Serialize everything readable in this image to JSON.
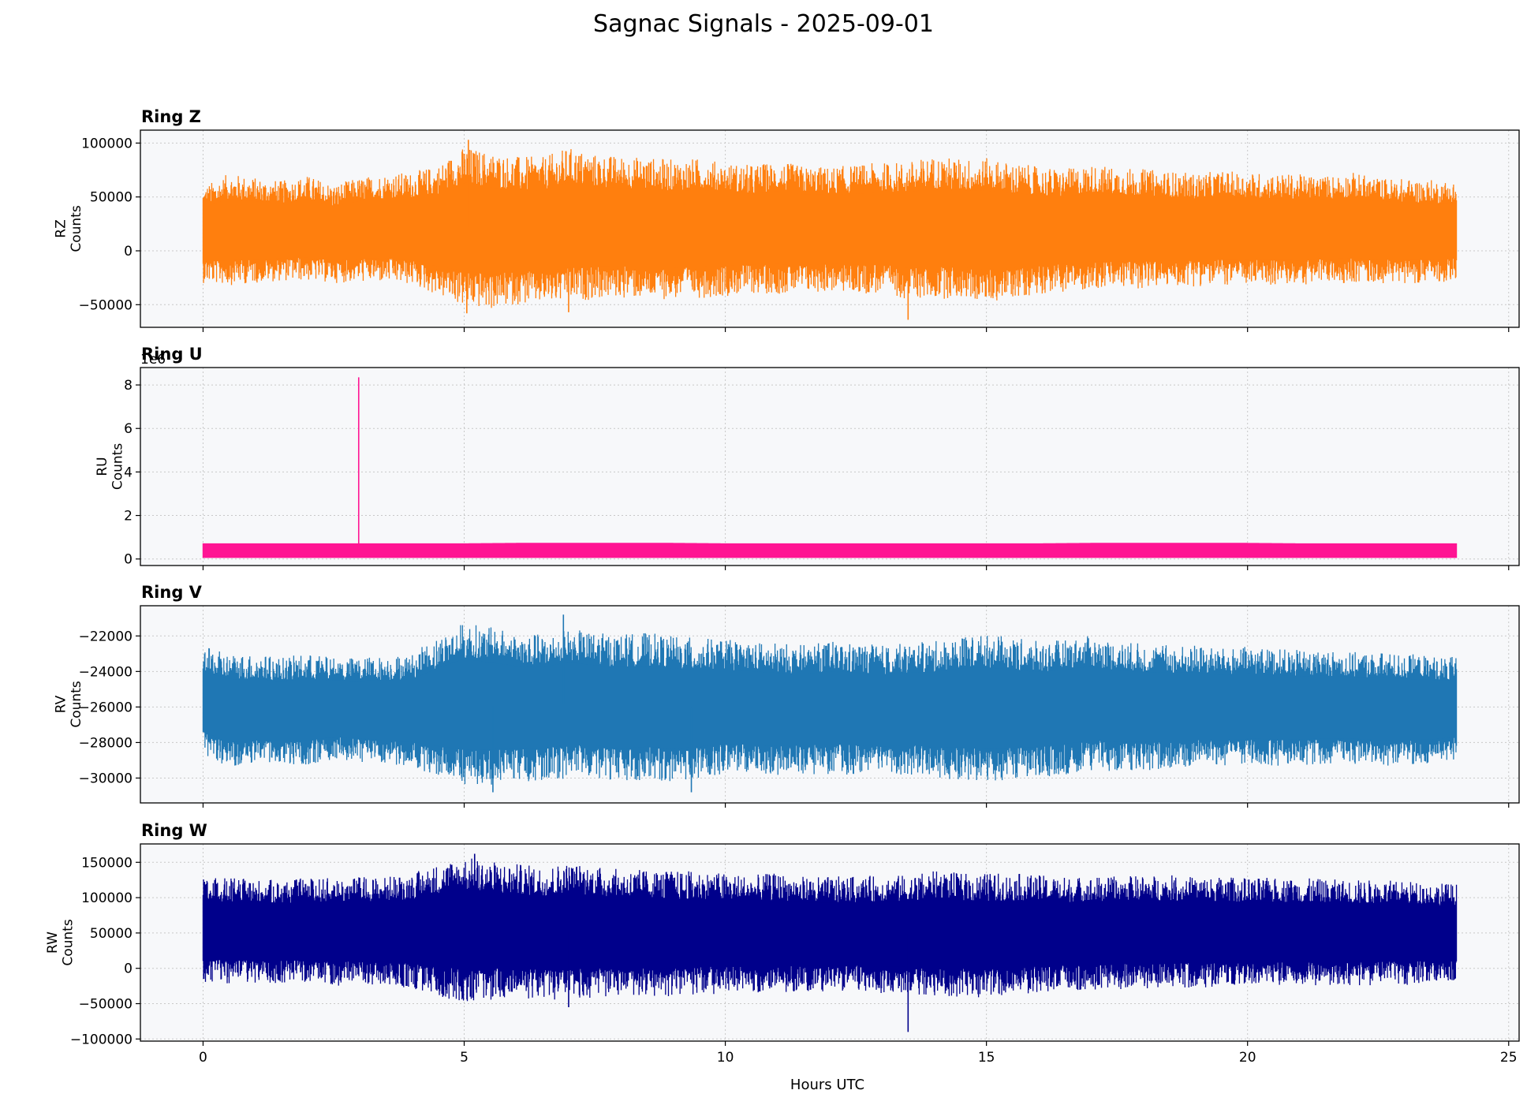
{
  "figure": {
    "title": "Sagnac Signals - 2025-09-01",
    "xlabel": "Hours UTC"
  },
  "chart_data": [
    {
      "type": "line",
      "panel_title": "Ring Z",
      "ylabel_lines": [
        "RZ",
        "Counts"
      ],
      "color": "#ff7f0e",
      "xlim": [
        -1.2,
        25.2
      ],
      "ylim": [
        -71000,
        112000
      ],
      "x_ticks": [
        0,
        5,
        10,
        15,
        20,
        25
      ],
      "y_ticks": [
        100000,
        50000,
        0,
        -50000
      ],
      "y_tick_labels": [
        "100000",
        "50000",
        "0",
        "−50000"
      ],
      "offset_label": "",
      "grid": true,
      "x": [
        0,
        0.5,
        1,
        1.5,
        2,
        2.5,
        3,
        3.5,
        4,
        4.5,
        5,
        5.5,
        6,
        6.5,
        7,
        7.5,
        8,
        8.5,
        9,
        9.5,
        10,
        10.5,
        11,
        11.5,
        12,
        12.5,
        13,
        13.5,
        14,
        14.5,
        15,
        15.5,
        16,
        16.5,
        17,
        17.5,
        18,
        18.5,
        19,
        19.5,
        20,
        20.5,
        21,
        21.5,
        22,
        22.5,
        23,
        23.5,
        24
      ],
      "upper": [
        60000,
        72000,
        68000,
        65000,
        70000,
        62000,
        68000,
        72000,
        73000,
        80000,
        97000,
        92000,
        88000,
        87000,
        96000,
        90000,
        88000,
        87000,
        85000,
        86000,
        82000,
        80000,
        83000,
        79000,
        78000,
        80000,
        82000,
        83000,
        88000,
        86000,
        86000,
        82000,
        78000,
        76000,
        80000,
        78000,
        76000,
        74000,
        72000,
        74000,
        73000,
        72000,
        71000,
        70000,
        73000,
        68000,
        67000,
        66000,
        65000
      ],
      "lower": [
        -30000,
        -32000,
        -30000,
        -28000,
        -28000,
        -30000,
        -29000,
        -30000,
        -32000,
        -42000,
        -52000,
        -55000,
        -50000,
        -50000,
        -48000,
        -45000,
        -44000,
        -45000,
        -45000,
        -44000,
        -42000,
        -40000,
        -40000,
        -40000,
        -38000,
        -40000,
        -40000,
        -45000,
        -45000,
        -44000,
        -48000,
        -44000,
        -40000,
        -38000,
        -36000,
        -35000,
        -35000,
        -33000,
        -33000,
        -32000,
        -32000,
        -32000,
        -32000,
        -30000,
        -30000,
        -30000,
        -30000,
        -30000,
        -28000
      ],
      "extremes": [
        {
          "x": 5.08,
          "y": 103000
        },
        {
          "x": 13.5,
          "y": -64000
        },
        {
          "x": 5.05,
          "y": -58000
        },
        {
          "x": 7.0,
          "y": -57000
        }
      ]
    },
    {
      "type": "line",
      "panel_title": "Ring U",
      "ylabel_lines": [
        "RU",
        "Counts"
      ],
      "color": "#ff1493",
      "xlim": [
        -1.2,
        25.2
      ],
      "ylim": [
        -0.3,
        8.8
      ],
      "x_ticks": [
        0,
        5,
        10,
        15,
        20,
        25
      ],
      "y_ticks": [
        8,
        6,
        4,
        2,
        0
      ],
      "y_tick_labels": [
        "8",
        "6",
        "4",
        "2",
        "0"
      ],
      "offset_label": "1e6",
      "grid": true,
      "x": [
        0,
        1,
        2,
        3,
        4,
        5,
        6,
        7,
        8,
        9,
        10,
        11,
        12,
        13,
        14,
        15,
        16,
        17,
        18,
        19,
        20,
        21,
        22,
        23,
        24
      ],
      "upper": [
        0.72,
        0.72,
        0.72,
        0.72,
        0.72,
        0.72,
        0.74,
        0.74,
        0.74,
        0.74,
        0.72,
        0.72,
        0.72,
        0.72,
        0.72,
        0.72,
        0.72,
        0.74,
        0.74,
        0.74,
        0.74,
        0.72,
        0.72,
        0.72,
        0.72
      ],
      "lower": [
        0.05,
        0.05,
        0.05,
        0.05,
        0.05,
        0.05,
        0.05,
        0.05,
        0.05,
        0.05,
        0.05,
        0.05,
        0.05,
        0.05,
        0.05,
        0.05,
        0.05,
        0.05,
        0.05,
        0.05,
        0.05,
        0.05,
        0.05,
        0.05,
        0.05
      ],
      "extremes": [
        {
          "x": 2.98,
          "y": 8.35
        }
      ]
    },
    {
      "type": "line",
      "panel_title": "Ring V",
      "ylabel_lines": [
        "RV",
        "Counts"
      ],
      "color": "#1f77b4",
      "xlim": [
        -1.2,
        25.2
      ],
      "ylim": [
        -31400,
        -20300
      ],
      "x_ticks": [
        0,
        5,
        10,
        15,
        20,
        25
      ],
      "y_ticks": [
        -22000,
        -24000,
        -26000,
        -28000,
        -30000
      ],
      "y_tick_labels": [
        "−22000",
        "−24000",
        "−26000",
        "−28000",
        "−30000"
      ],
      "offset_label": "",
      "grid": true,
      "x": [
        0,
        0.5,
        1,
        1.5,
        2,
        2.5,
        3,
        3.5,
        4,
        4.5,
        5,
        5.5,
        6,
        6.5,
        7,
        7.5,
        8,
        8.5,
        9,
        9.5,
        10,
        10.5,
        11,
        11.5,
        12,
        12.5,
        13,
        13.5,
        14,
        14.5,
        15,
        15.5,
        16,
        16.5,
        17,
        17.5,
        18,
        18.5,
        19,
        19.5,
        20,
        20.5,
        21,
        21.5,
        22,
        22.5,
        23,
        23.5,
        24
      ],
      "upper": [
        -22600,
        -23000,
        -23000,
        -23200,
        -23000,
        -23200,
        -23200,
        -23100,
        -23000,
        -22000,
        -21200,
        -21500,
        -21800,
        -21900,
        -21600,
        -21800,
        -21900,
        -21800,
        -22000,
        -22100,
        -22200,
        -22300,
        -22400,
        -22500,
        -22300,
        -22400,
        -22500,
        -22400,
        -22300,
        -22000,
        -21900,
        -22100,
        -22300,
        -22200,
        -22000,
        -22300,
        -22400,
        -22500,
        -22500,
        -22700,
        -22600,
        -22700,
        -22800,
        -22800,
        -22900,
        -22900,
        -23000,
        -23100,
        -23200
      ],
      "lower": [
        -28800,
        -29400,
        -29300,
        -29200,
        -29300,
        -29000,
        -29100,
        -29300,
        -29400,
        -30000,
        -30500,
        -30400,
        -30200,
        -30200,
        -30000,
        -30000,
        -30200,
        -30100,
        -30200,
        -30000,
        -29800,
        -29800,
        -29900,
        -29800,
        -29800,
        -29800,
        -29900,
        -29800,
        -30000,
        -30100,
        -30200,
        -30100,
        -30000,
        -29800,
        -29600,
        -29600,
        -29600,
        -29500,
        -29400,
        -29400,
        -29300,
        -29300,
        -29300,
        -29200,
        -29200,
        -29300,
        -29300,
        -29200,
        -29000
      ],
      "extremes": [
        {
          "x": 6.9,
          "y": -20800
        },
        {
          "x": 5.55,
          "y": -30800
        },
        {
          "x": 9.35,
          "y": -30800
        }
      ]
    },
    {
      "type": "line",
      "panel_title": "Ring W",
      "ylabel_lines": [
        "RW",
        "Counts"
      ],
      "color": "#00008b",
      "xlim": [
        -1.2,
        25.2
      ],
      "ylim": [
        -103000,
        176000
      ],
      "x_ticks": [
        0,
        5,
        10,
        15,
        20,
        25
      ],
      "y_ticks": [
        150000,
        100000,
        50000,
        0,
        -50000,
        -100000
      ],
      "y_tick_labels": [
        "150000",
        "100000",
        "50000",
        "0",
        "−50000",
        "−100000"
      ],
      "offset_label": "",
      "grid": true,
      "x": [
        0,
        0.5,
        1,
        1.5,
        2,
        2.5,
        3,
        3.5,
        4,
        4.5,
        5,
        5.5,
        6,
        6.5,
        7,
        7.5,
        8,
        8.5,
        9,
        9.5,
        10,
        10.5,
        11,
        11.5,
        12,
        12.5,
        13,
        13.5,
        14,
        14.5,
        15,
        15.5,
        16,
        16.5,
        17,
        17.5,
        18,
        18.5,
        19,
        19.5,
        20,
        20.5,
        21,
        21.5,
        22,
        22.5,
        23,
        23.5,
        24
      ],
      "upper": [
        128000,
        128000,
        126000,
        125000,
        128000,
        128000,
        130000,
        130000,
        135000,
        148000,
        158000,
        152000,
        148000,
        145000,
        150000,
        145000,
        140000,
        140000,
        138000,
        138000,
        135000,
        132000,
        135000,
        130000,
        130000,
        130000,
        132000,
        132000,
        138000,
        135000,
        135000,
        135000,
        132000,
        130000,
        130000,
        130000,
        132000,
        132000,
        130000,
        130000,
        128000,
        128000,
        128000,
        126000,
        126000,
        125000,
        124000,
        122000,
        120000
      ],
      "lower": [
        -20000,
        -22000,
        -22000,
        -22000,
        -22000,
        -25000,
        -25000,
        -25000,
        -30000,
        -40000,
        -48000,
        -45000,
        -42000,
        -45000,
        -45000,
        -42000,
        -40000,
        -40000,
        -40000,
        -38000,
        -35000,
        -35000,
        -35000,
        -33000,
        -33000,
        -33000,
        -35000,
        -35000,
        -40000,
        -40000,
        -42000,
        -38000,
        -35000,
        -32000,
        -30000,
        -30000,
        -30000,
        -28000,
        -28000,
        -27000,
        -27000,
        -26000,
        -25000,
        -25000,
        -25000,
        -24000,
        -24000,
        -22000,
        -20000
      ],
      "extremes": [
        {
          "x": 5.2,
          "y": 162000
        },
        {
          "x": 13.5,
          "y": -90000
        },
        {
          "x": 7.0,
          "y": -55000
        }
      ]
    }
  ]
}
